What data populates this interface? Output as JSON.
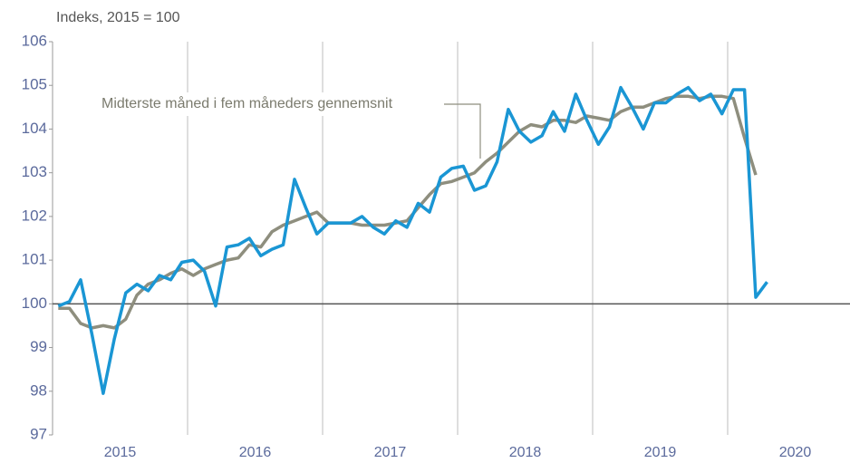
{
  "chart_data": {
    "type": "line",
    "y_label": "Indeks, 2015 = 100",
    "annotation": "Midterste måned i fem måneders gennemsnit",
    "xlim": [
      2015,
      2021
    ],
    "xticks": [
      {
        "value": 2015.5,
        "label": "2015"
      },
      {
        "value": 2016.5,
        "label": "2016"
      },
      {
        "value": 2017.5,
        "label": "2017"
      },
      {
        "value": 2018.5,
        "label": "2018"
      },
      {
        "value": 2019.5,
        "label": "2019"
      },
      {
        "value": 2020.5,
        "label": "2020"
      }
    ],
    "xgrid": [
      2016,
      2017,
      2018,
      2019,
      2020
    ],
    "ylim": [
      97,
      106
    ],
    "yticks": [
      97,
      98,
      99,
      100,
      101,
      102,
      103,
      104,
      105,
      106
    ],
    "reference_line": 100,
    "x": [
      2015.042,
      2015.125,
      2015.208,
      2015.292,
      2015.375,
      2015.458,
      2015.542,
      2015.625,
      2015.708,
      2015.792,
      2015.875,
      2015.958,
      2016.042,
      2016.125,
      2016.208,
      2016.292,
      2016.375,
      2016.458,
      2016.542,
      2016.625,
      2016.708,
      2016.792,
      2016.875,
      2016.958,
      2017.042,
      2017.125,
      2017.208,
      2017.292,
      2017.375,
      2017.458,
      2017.542,
      2017.625,
      2017.708,
      2017.792,
      2017.875,
      2017.958,
      2018.042,
      2018.125,
      2018.208,
      2018.292,
      2018.375,
      2018.458,
      2018.542,
      2018.625,
      2018.708,
      2018.792,
      2018.875,
      2018.958,
      2019.042,
      2019.125,
      2019.208,
      2019.292,
      2019.375,
      2019.458,
      2019.542,
      2019.625,
      2019.708,
      2019.792,
      2019.875,
      2019.958,
      2020.042,
      2020.125,
      2020.208,
      2020.292
    ],
    "series": [
      {
        "color": "#1a96d4",
        "values": [
          99.95,
          100.05,
          100.55,
          99.3,
          97.95,
          99.2,
          100.25,
          100.45,
          100.3,
          100.65,
          100.55,
          100.95,
          101.0,
          100.75,
          99.95,
          101.3,
          101.35,
          101.5,
          101.1,
          101.25,
          101.35,
          102.85,
          102.2,
          101.6,
          101.85,
          101.85,
          101.85,
          102.0,
          101.75,
          101.6,
          101.9,
          101.75,
          102.3,
          102.1,
          102.9,
          103.1,
          103.15,
          102.6,
          102.7,
          103.25,
          104.45,
          103.95,
          103.7,
          103.85,
          104.4,
          103.95,
          104.8,
          104.2,
          103.65,
          104.05,
          104.95,
          104.5,
          104.0,
          104.6,
          104.6,
          104.8,
          104.95,
          104.65,
          104.8,
          104.35,
          104.9,
          104.9,
          100.15,
          100.5
        ]
      },
      {
        "color": "#8e8e7e",
        "values": [
          99.9,
          99.9,
          99.55,
          99.45,
          99.5,
          99.45,
          99.65,
          100.2,
          100.45,
          100.55,
          100.7,
          100.8,
          100.65,
          100.8,
          100.9,
          101.0,
          101.05,
          101.35,
          101.3,
          101.65,
          101.8,
          101.9,
          102.0,
          102.1,
          101.85,
          101.85,
          101.85,
          101.8,
          101.8,
          101.8,
          101.85,
          101.9,
          102.2,
          102.5,
          102.75,
          102.8,
          102.9,
          103.0,
          103.25,
          103.45,
          103.7,
          103.95,
          104.1,
          104.05,
          104.2,
          104.2,
          104.15,
          104.3,
          104.25,
          104.2,
          104.4,
          104.5,
          104.5,
          104.6,
          104.7,
          104.75,
          104.75,
          104.7,
          104.75,
          104.75,
          104.7,
          103.8,
          102.95,
          null
        ]
      }
    ]
  }
}
